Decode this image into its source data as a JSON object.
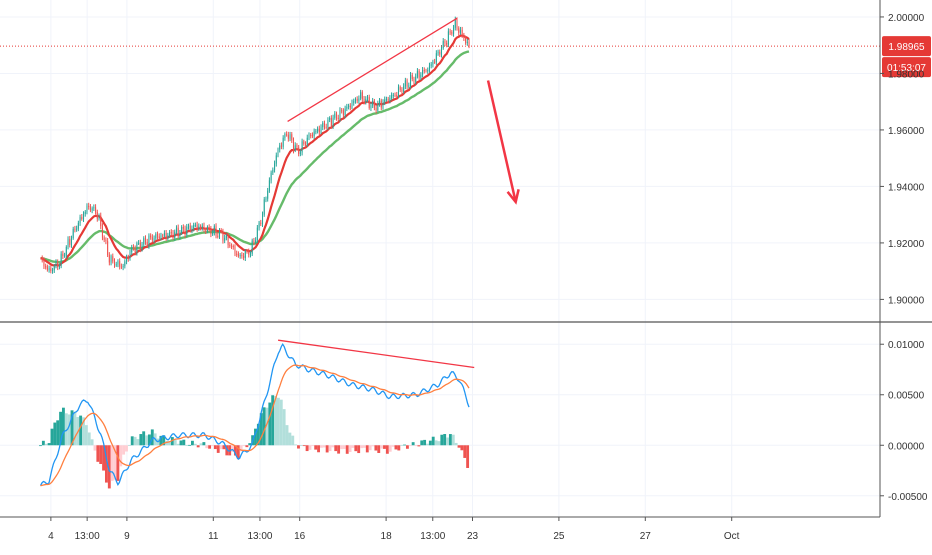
{
  "chart_data": {
    "type": "candlestick",
    "price_axis": {
      "ticks": [
        1.9,
        1.92,
        1.94,
        1.96,
        1.98,
        2.0
      ],
      "tick_labels": [
        "1.90000",
        "1.92000",
        "1.94000",
        "1.96000",
        "1.98000",
        "2.00000"
      ],
      "range": [
        1.892,
        2.006
      ]
    },
    "macd_axis": {
      "ticks": [
        -0.005,
        0.0,
        0.005,
        0.01
      ],
      "tick_labels": [
        "-0.00500",
        "0.00000",
        "0.00500",
        "0.01000"
      ],
      "range": [
        -0.0071,
        0.0122
      ]
    },
    "time_axis": {
      "ticks": [
        {
          "label": "4",
          "t": 0.12
        },
        {
          "label": "13:00",
          "t": 0.54
        },
        {
          "label": "9",
          "t": 1.0
        },
        {
          "label": "11",
          "t": 2.0
        },
        {
          "label": "13:00",
          "t": 2.54
        },
        {
          "label": "16",
          "t": 3.0
        },
        {
          "label": "18",
          "t": 4.0
        },
        {
          "label": "13:00",
          "t": 4.54
        },
        {
          "label": "23",
          "t": 5.0
        },
        {
          "label": "25",
          "t": 6.0
        },
        {
          "label": "27",
          "t": 7.0
        },
        {
          "label": "Oct",
          "t": 8.0
        }
      ]
    },
    "last_price": {
      "value": 1.98965,
      "label": "1.98965",
      "countdown": "01:53:07",
      "color": "#e53935"
    },
    "colors": {
      "up": "#26a69a",
      "down": "#ef5350",
      "ema_fast": "#e53935",
      "ema_slow": "#66bb6a",
      "macd": "#2196f3",
      "signal": "#ff7f3f",
      "hist_up_strong": "#26a69a",
      "hist_up_weak": "#b2dfdb",
      "hist_down_strong": "#ef5350",
      "hist_down_weak": "#ffcdd2",
      "annotation": "#f23645",
      "grid": "#f0f3fa",
      "axis": "#555555"
    },
    "grid": true,
    "close_anchors": [
      [
        0.0,
        1.914
      ],
      [
        0.1,
        1.91
      ],
      [
        0.22,
        1.913
      ],
      [
        0.4,
        1.925
      ],
      [
        0.55,
        1.933
      ],
      [
        0.65,
        1.931
      ],
      [
        0.8,
        1.914
      ],
      [
        0.95,
        1.9115
      ],
      [
        1.05,
        1.9175
      ],
      [
        1.3,
        1.922
      ],
      [
        1.5,
        1.923
      ],
      [
        1.8,
        1.926
      ],
      [
        2.1,
        1.923
      ],
      [
        2.3,
        1.915
      ],
      [
        2.43,
        1.917
      ],
      [
        2.55,
        1.928
      ],
      [
        2.65,
        1.942
      ],
      [
        2.75,
        1.953
      ],
      [
        2.85,
        1.959
      ],
      [
        2.98,
        1.952
      ],
      [
        3.1,
        1.9575
      ],
      [
        3.3,
        1.962
      ],
      [
        3.5,
        1.9665
      ],
      [
        3.7,
        1.972
      ],
      [
        3.87,
        1.968
      ],
      [
        4.1,
        1.9725
      ],
      [
        4.3,
        1.978
      ],
      [
        4.5,
        1.982
      ],
      [
        4.7,
        1.992
      ],
      [
        4.8,
        1.9975
      ],
      [
        4.88,
        1.9935
      ],
      [
        4.96,
        1.9897
      ]
    ],
    "macd_anchors": [
      [
        0.0,
        -0.004
      ],
      [
        0.1,
        -0.0035
      ],
      [
        0.25,
        0.0008
      ],
      [
        0.45,
        0.004
      ],
      [
        0.55,
        0.0045
      ],
      [
        0.7,
        0.001
      ],
      [
        0.8,
        -0.0025
      ],
      [
        0.9,
        -0.0037
      ],
      [
        1.05,
        -0.0015
      ],
      [
        1.3,
        0.0005
      ],
      [
        1.6,
        0.001
      ],
      [
        1.9,
        0.001
      ],
      [
        2.1,
        0.0002
      ],
      [
        2.3,
        -0.0012
      ],
      [
        2.45,
        0.0
      ],
      [
        2.6,
        0.0045
      ],
      [
        2.75,
        0.0093
      ],
      [
        2.8,
        0.0098
      ],
      [
        2.95,
        0.008
      ],
      [
        3.1,
        0.0075
      ],
      [
        3.3,
        0.007
      ],
      [
        3.6,
        0.006
      ],
      [
        3.85,
        0.0055
      ],
      [
        4.05,
        0.0048
      ],
      [
        4.35,
        0.005
      ],
      [
        4.6,
        0.006
      ],
      [
        4.75,
        0.0072
      ],
      [
        4.85,
        0.0065
      ],
      [
        4.96,
        0.004
      ]
    ],
    "annotations": [
      {
        "type": "trendline",
        "pane": "price",
        "from": [
          2.86,
          1.963
        ],
        "to": [
          4.82,
          1.9995
        ]
      },
      {
        "type": "trendline",
        "pane": "macd",
        "from": [
          2.75,
          0.0104
        ],
        "to": [
          5.02,
          0.0077
        ]
      },
      {
        "type": "arrow",
        "pane": "price",
        "from": [
          5.18,
          1.9775
        ],
        "to": [
          5.5,
          1.9345
        ]
      }
    ]
  }
}
